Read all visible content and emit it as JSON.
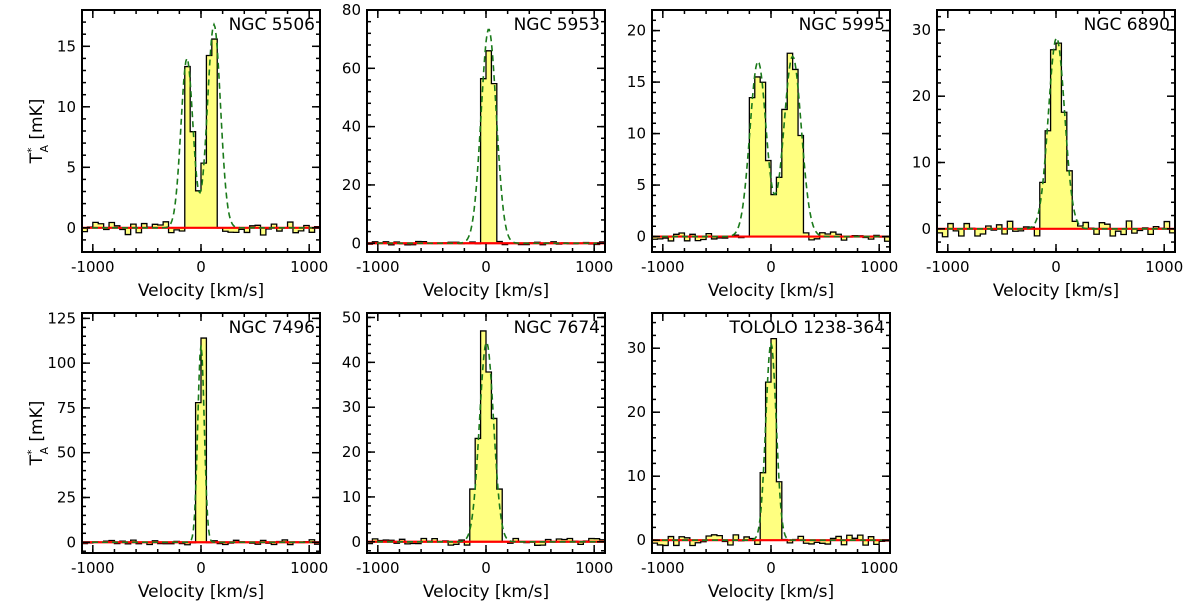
{
  "figure": {
    "xlabel": "Velocity [km/s]",
    "ylabel": "T*A [mK]",
    "ylabel_main": "T",
    "ylabel_sup": "*",
    "ylabel_sub": "A",
    "ylabel_unit": " [mK]",
    "xlim": [
      -1100,
      1100
    ],
    "xticks": [
      -1000,
      0,
      1000
    ],
    "colors": {
      "spectrum_fill": "#ffff80",
      "spectrum_edge": "#000000",
      "fit": "#1a7a1a",
      "baseline": "#ff0000"
    }
  },
  "chart_data": [
    {
      "type": "line",
      "title": "NGC 5506",
      "xlabel": "Velocity [km/s]",
      "ylabel": "T*A [mK]",
      "xlim": [
        -1100,
        1100
      ],
      "ylim": [
        -2,
        18
      ],
      "yticks": [
        0,
        5,
        10,
        15
      ],
      "profile": "double",
      "peak": 15.6,
      "center": 0,
      "width": 340,
      "noise": 0.6,
      "seed": 3,
      "gaussians": [
        [
          14.0,
          -130,
          55
        ],
        [
          16.8,
          120,
          60
        ]
      ]
    },
    {
      "type": "line",
      "title": "NGC 5953",
      "xlabel": "Velocity [km/s]",
      "ylabel": "T*A [mK]",
      "xlim": [
        -1100,
        1100
      ],
      "ylim": [
        -3,
        80
      ],
      "yticks": [
        0,
        20,
        40,
        60,
        80
      ],
      "profile": "single",
      "peak": 66,
      "center": 30,
      "width": 180,
      "noise": 0.6,
      "seed": 7,
      "gaussians": [
        [
          73.5,
          25,
          70
        ]
      ]
    },
    {
      "type": "line",
      "title": "NGC 5995",
      "xlabel": "Velocity [km/s]",
      "ylabel": "T*A [mK]",
      "xlim": [
        -1100,
        1100
      ],
      "ylim": [
        -1.5,
        22
      ],
      "yticks": [
        0,
        5,
        10,
        15,
        20
      ],
      "profile": "double",
      "peak": 17.8,
      "center": 40,
      "width": 480,
      "noise": 0.5,
      "seed": 11,
      "gaussians": [
        [
          17.0,
          -120,
          75
        ],
        [
          17.5,
          200,
          80
        ]
      ]
    },
    {
      "type": "line",
      "title": "NGC 6890",
      "xlabel": "Velocity [km/s]",
      "ylabel": "T*A [mK]",
      "xlim": [
        -1100,
        1100
      ],
      "ylim": [
        -3.5,
        33
      ],
      "yticks": [
        0,
        10,
        20,
        30
      ],
      "profile": "single",
      "peak": 28,
      "center": 10,
      "width": 300,
      "noise": 1.2,
      "seed": 19,
      "gaussians": [
        [
          28.8,
          5,
          75
        ]
      ]
    },
    {
      "type": "line",
      "title": "NGC 7496",
      "xlabel": "Velocity [km/s]",
      "ylabel": "T*A [mK]",
      "xlim": [
        -1100,
        1100
      ],
      "ylim": [
        -6,
        128
      ],
      "yticks": [
        0,
        25,
        50,
        75,
        100,
        125
      ],
      "profile": "single",
      "peak": 114,
      "center": 0,
      "width": 110,
      "noise": 1.5,
      "seed": 23,
      "gaussians": [
        [
          110,
          0,
          30
        ]
      ]
    },
    {
      "type": "line",
      "title": "NGC 7674",
      "xlabel": "Velocity [km/s]",
      "ylabel": "T*A [mK]",
      "xlim": [
        -1100,
        1100
      ],
      "ylim": [
        -2.5,
        51
      ],
      "yticks": [
        0,
        10,
        20,
        30,
        40,
        50
      ],
      "profile": "single",
      "peak": 47,
      "center": 10,
      "width": 280,
      "noise": 0.8,
      "seed": 29,
      "gaussians": [
        [
          44.5,
          5,
          65
        ]
      ]
    },
    {
      "type": "line",
      "title": "TOLOLO 1238-364",
      "xlabel": "Velocity [km/s]",
      "ylabel": "T*A [mK]",
      "xlim": [
        -1100,
        1100
      ],
      "ylim": [
        -2,
        35.5
      ],
      "yticks": [
        0,
        10,
        20,
        30
      ],
      "profile": "single",
      "peak": 31.5,
      "center": 0,
      "width": 200,
      "noise": 0.9,
      "seed": 31,
      "gaussians": [
        [
          30.8,
          0,
          48
        ]
      ]
    }
  ]
}
